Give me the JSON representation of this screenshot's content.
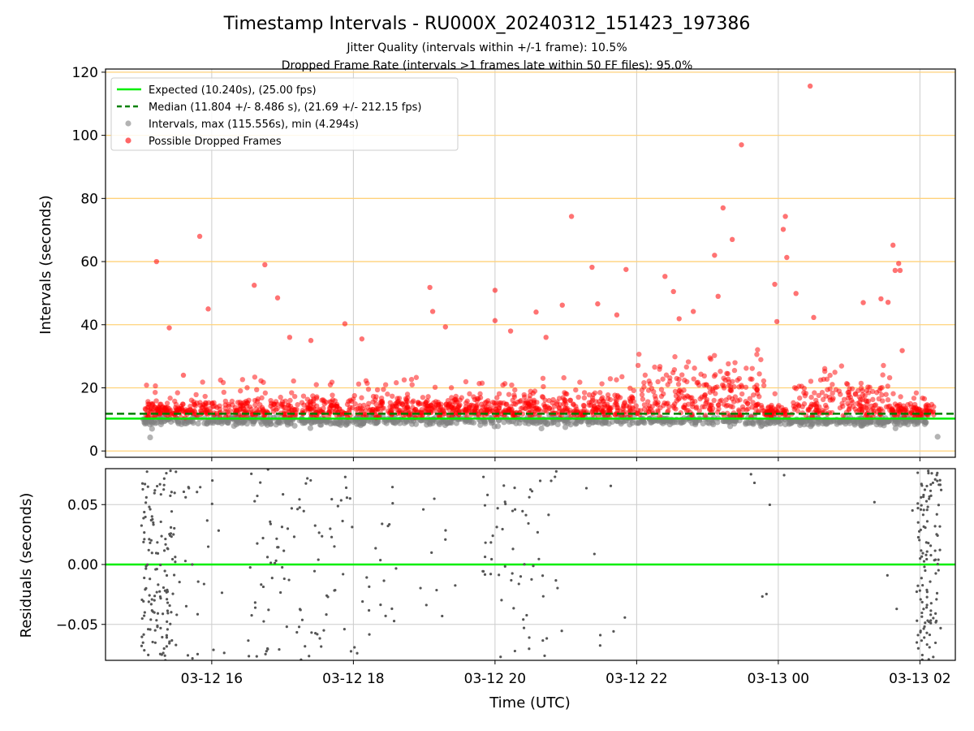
{
  "figure": {
    "title": "Timestamp Intervals - RU000X_20240312_151423_197386",
    "subtitle_1": "Jitter Quality (intervals within +/-1 frame): 10.5%",
    "subtitle_2": "Dropped Frame Rate (intervals >1 frames late within 50 FF files): 95.0%"
  },
  "colors": {
    "expected": "#00ee00",
    "median": "#008000",
    "intervals": "#808080",
    "dropped": "#ff0000",
    "hline": "#ffd27a",
    "grid": "#cccccc"
  },
  "chart_data": [
    {
      "type": "scatter",
      "ylabel": "Intervals (seconds)",
      "xlim_hours": [
        14.5,
        26.5
      ],
      "ylim": [
        -2,
        121
      ],
      "y_ticks": [
        0,
        20,
        40,
        60,
        80,
        100,
        120
      ],
      "x_ticks": [
        16,
        18,
        20,
        22,
        24,
        26
      ],
      "x_tick_labels": [
        "03-12 16",
        "03-12 18",
        "03-12 20",
        "03-12 22",
        "03-13 00",
        "03-13 02"
      ],
      "grid": true,
      "legend_position": "top-left",
      "lines": {
        "expected_y": 10.24,
        "median_y": 11.804
      },
      "legend": [
        "Expected (10.240s), (25.00 fps)",
        "Median (11.804 +/- 8.486 s), (21.69 +/- 212.15 fps)",
        "Intervals, max (115.556s), min (4.294s)",
        "Possible Dropped Frames"
      ],
      "dropped_outliers": [
        [
          15.22,
          60
        ],
        [
          15.4,
          39
        ],
        [
          15.6,
          24
        ],
        [
          15.83,
          68
        ],
        [
          15.95,
          45
        ],
        [
          16.6,
          52.5
        ],
        [
          16.75,
          59
        ],
        [
          16.93,
          48.5
        ],
        [
          17.1,
          36
        ],
        [
          17.4,
          35
        ],
        [
          17.88,
          40.3
        ],
        [
          18.12,
          35.5
        ],
        [
          19.08,
          51.8
        ],
        [
          19.12,
          44.2
        ],
        [
          19.3,
          39.3
        ],
        [
          20.0,
          41.3
        ],
        [
          20.22,
          38
        ],
        [
          20.0,
          50.9
        ],
        [
          20.58,
          44
        ],
        [
          20.72,
          36
        ],
        [
          20.95,
          46.2
        ],
        [
          21.08,
          74.3
        ],
        [
          21.37,
          58.2
        ],
        [
          21.45,
          46.6
        ],
        [
          21.72,
          43.1
        ],
        [
          21.85,
          57.5
        ],
        [
          22.4,
          55.3
        ],
        [
          22.52,
          50.5
        ],
        [
          22.6,
          41.9
        ],
        [
          22.8,
          44.2
        ],
        [
          23.1,
          62
        ],
        [
          23.15,
          49
        ],
        [
          23.22,
          77
        ],
        [
          23.35,
          67
        ],
        [
          23.48,
          97
        ],
        [
          23.95,
          52.8
        ],
        [
          23.98,
          41
        ],
        [
          24.07,
          70.2
        ],
        [
          24.1,
          74.3
        ],
        [
          24.12,
          61.3
        ],
        [
          24.25,
          49.9
        ],
        [
          24.45,
          115.6
        ],
        [
          24.5,
          42.3
        ],
        [
          25.2,
          47
        ],
        [
          25.45,
          48.2
        ],
        [
          25.55,
          47.1
        ],
        [
          25.62,
          65.2
        ],
        [
          25.65,
          57.2
        ],
        [
          25.7,
          59.4
        ],
        [
          25.72,
          57.2
        ],
        [
          25.75,
          31.8
        ]
      ]
    },
    {
      "type": "scatter",
      "ylabel": "Residuals (seconds)",
      "xlabel": "Time (UTC)",
      "xlim_hours": [
        14.5,
        26.5
      ],
      "ylim": [
        -0.08,
        0.08
      ],
      "y_ticks": [
        0.05,
        0.0,
        -0.05
      ],
      "y_tick_labels": [
        "0.05",
        "0.00",
        "−0.05"
      ],
      "x_ticks": [
        16,
        18,
        20,
        22,
        24,
        26
      ],
      "x_tick_labels": [
        "03-12 16",
        "03-12 18",
        "03-12 20",
        "03-12 22",
        "03-13 00",
        "03-13 02"
      ],
      "grid": true,
      "zero_line_y": 0.0
    }
  ]
}
